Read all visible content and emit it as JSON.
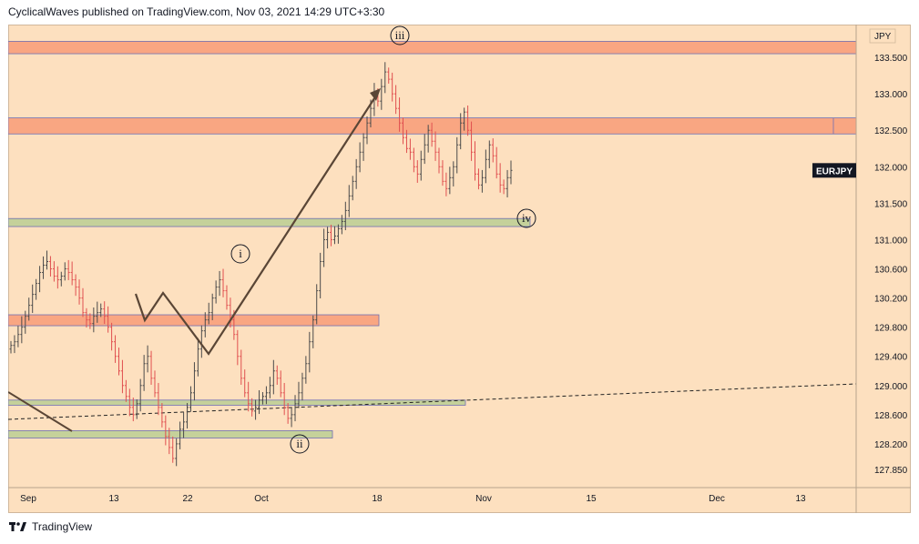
{
  "header": {
    "published": "CyclicalWaves published on TradingView.com, Nov 03, 2021 14:29 UTC+3:30"
  },
  "footer": {
    "brand": "TradingView"
  },
  "colors": {
    "background": "#fde0bf",
    "resistance_zone": "#f9a682",
    "support_zone": "#c5d19a",
    "zone_border": "#6f6fb3",
    "candle_up": "#4b4b4b",
    "candle_down": "#e05050",
    "wave_line": "#5a4636"
  },
  "chart_data": {
    "type": "candlestick",
    "symbol": "EURJPY",
    "currency_label": "JPY",
    "last_price": 131.95,
    "y_ticks": [
      "127.850",
      "128.200",
      "128.600",
      "129.000",
      "129.400",
      "129.800",
      "130.200",
      "130.600",
      "131.000",
      "131.500",
      "132.000",
      "132.500",
      "133.000",
      "133.500"
    ],
    "y_range": [
      127.6,
      133.95
    ],
    "x_ticks": [
      "Sep",
      "13",
      "22",
      "Oct",
      "18",
      "Nov",
      "15",
      "Dec",
      "13"
    ],
    "wave_labels": [
      "i",
      "ii",
      "iii",
      "iv"
    ],
    "zones": [
      {
        "kind": "resistance",
        "low": 133.55,
        "high": 133.72
      },
      {
        "kind": "resistance",
        "low": 132.45,
        "high": 132.67
      },
      {
        "kind": "support",
        "low": 131.18,
        "high": 131.29
      },
      {
        "kind": "resistance",
        "low": 129.82,
        "high": 129.97
      },
      {
        "kind": "support",
        "low": 128.73,
        "high": 128.8
      },
      {
        "kind": "support",
        "low": 128.28,
        "high": 128.38
      }
    ],
    "closes": [
      129.55,
      129.6,
      129.7,
      129.8,
      129.95,
      130.1,
      130.25,
      130.4,
      130.55,
      130.65,
      130.7,
      130.6,
      130.5,
      130.45,
      130.5,
      130.6,
      130.55,
      130.45,
      130.35,
      130.2,
      130.0,
      129.9,
      129.85,
      129.95,
      130.0,
      130.05,
      129.95,
      129.8,
      129.6,
      129.4,
      129.2,
      129.0,
      128.85,
      128.7,
      128.6,
      128.75,
      129.0,
      129.3,
      129.4,
      129.1,
      128.9,
      128.7,
      128.5,
      128.3,
      128.15,
      128.0,
      128.2,
      128.4,
      128.5,
      128.7,
      128.9,
      129.2,
      129.5,
      129.75,
      129.9,
      130.0,
      130.2,
      130.35,
      130.45,
      130.3,
      130.1,
      129.9,
      129.7,
      129.4,
      129.1,
      128.9,
      128.75,
      128.65,
      128.7,
      128.8,
      128.85,
      128.9,
      129.0,
      129.2,
      129.1,
      128.9,
      128.7,
      128.55,
      128.6,
      128.75,
      128.9,
      129.1,
      129.3,
      129.6,
      129.9,
      130.3,
      130.7,
      131.0,
      131.1,
      131.0,
      131.05,
      131.15,
      131.25,
      131.4,
      131.6,
      131.8,
      132.0,
      132.2,
      132.4,
      132.6,
      132.8,
      133.0,
      132.9,
      133.1,
      133.3,
      133.2,
      133.0,
      132.8,
      132.6,
      132.4,
      132.25,
      132.2,
      132.0,
      131.9,
      132.1,
      132.3,
      132.5,
      132.35,
      132.2,
      132.0,
      131.8,
      131.7,
      131.85,
      132.0,
      132.3,
      132.6,
      132.75,
      132.5,
      132.2,
      131.9,
      131.75,
      131.85,
      132.1,
      132.3,
      132.15,
      131.9,
      131.75,
      131.7,
      131.85,
      131.95
    ]
  }
}
